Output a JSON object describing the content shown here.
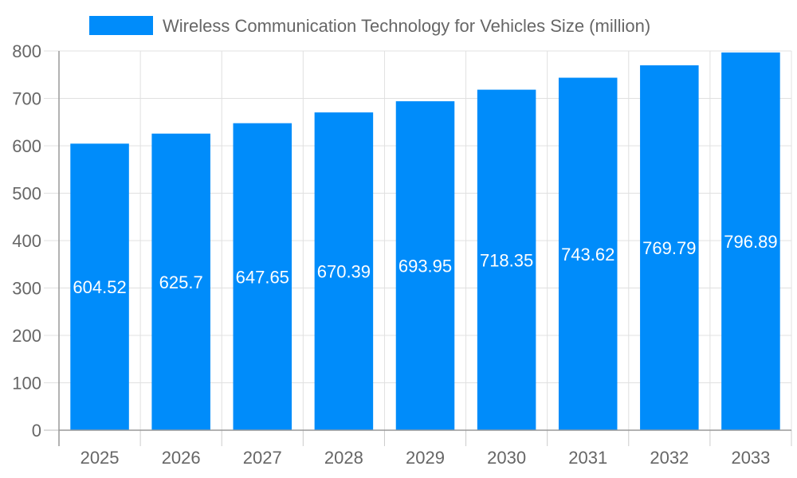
{
  "chart_data": {
    "type": "bar",
    "title": "",
    "xlabel": "",
    "ylabel": "",
    "categories": [
      "2025",
      "2026",
      "2027",
      "2028",
      "2029",
      "2030",
      "2031",
      "2032",
      "2033"
    ],
    "series": [
      {
        "name": "Wireless Communication Technology for Vehicles Size (million)",
        "values": [
          604.52,
          625.7,
          647.65,
          670.39,
          693.95,
          718.35,
          743.62,
          769.79,
          796.89
        ],
        "color": "#008cfa"
      }
    ],
    "ylim": [
      0,
      800
    ],
    "yticks": [
      0,
      100,
      200,
      300,
      400,
      500,
      600,
      700,
      800
    ],
    "grid": true,
    "legend": "top-center",
    "data_labels": true
  }
}
